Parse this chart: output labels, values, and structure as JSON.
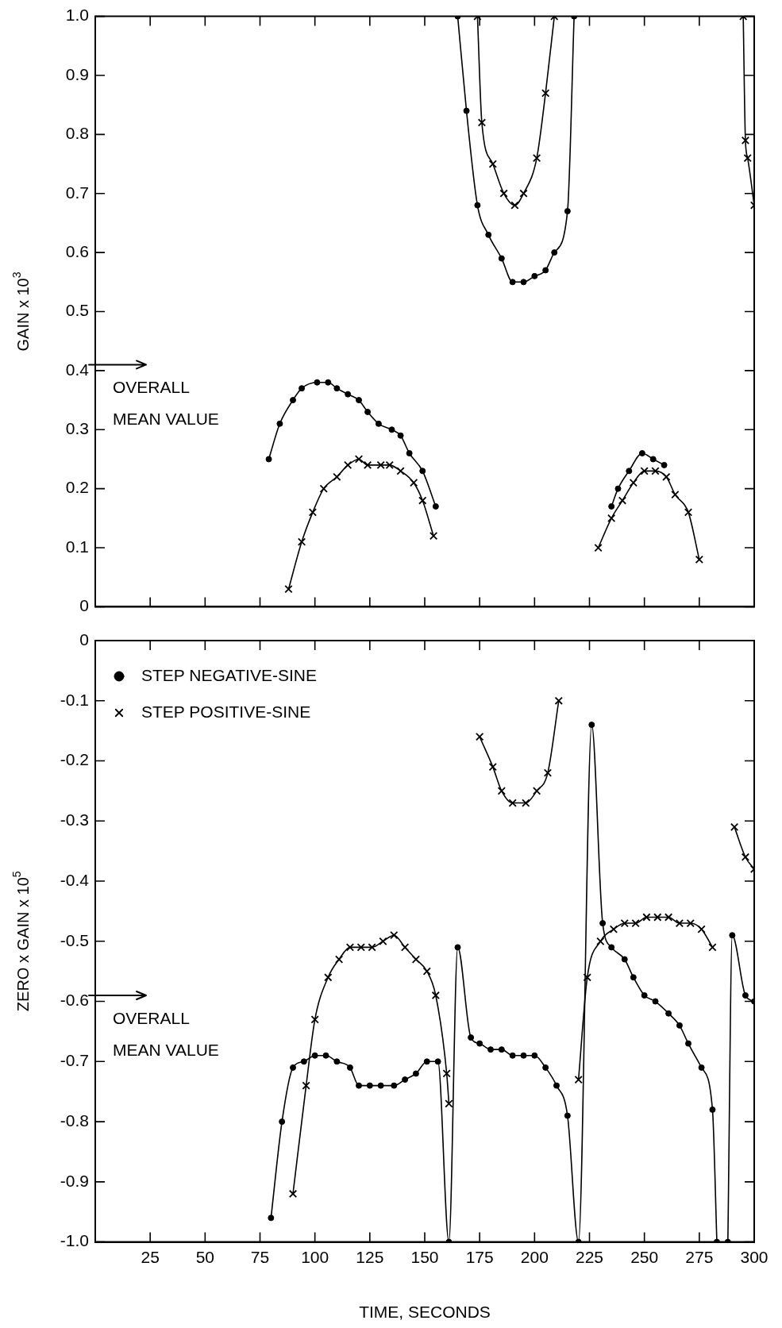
{
  "chart_data": [
    {
      "type": "line",
      "ylabel": "GAIN x 10$^{3}$",
      "xlim": [
        0,
        300
      ],
      "xticks": [
        25,
        50,
        75,
        100,
        125,
        150,
        175,
        200,
        225,
        250,
        275,
        300
      ],
      "ylim": [
        0,
        1
      ],
      "yticks": [
        0,
        0.1,
        0.2,
        0.3,
        0.4,
        0.5,
        0.6,
        0.7,
        0.8,
        0.9,
        {
          "value": 1,
          "label": "1.0"
        }
      ],
      "tick_labels": "y",
      "ref_lines": [
        {
          "axis": "y",
          "value": 0.41,
          "label": "OVERALL MEAN VALUE"
        }
      ],
      "series": [
        {
          "color": "#000000",
          "marker": "circle",
          "x": [
            79,
            84,
            90,
            94,
            101,
            106,
            110,
            115,
            120,
            124,
            129,
            135,
            139,
            143,
            149,
            155,
            160,
            165,
            169,
            174,
            179,
            185,
            190,
            195,
            200,
            205,
            209,
            215,
            218,
            225,
            235,
            238,
            243,
            249,
            254,
            259
          ],
          "values": [
            0.25,
            0.31,
            0.35,
            0.37,
            0.38,
            0.38,
            0.37,
            0.36,
            0.35,
            0.33,
            0.31,
            0.3,
            0.29,
            0.26,
            0.23,
            0.17,
            null,
            1.0,
            0.84,
            0.68,
            0.63,
            0.59,
            0.55,
            0.55,
            0.56,
            0.57,
            0.6,
            0.67,
            1.0,
            null,
            0.17,
            0.2,
            0.23,
            0.26,
            0.25,
            0.24
          ]
        },
        {
          "color": "#000000",
          "marker": "cross",
          "x": [
            88,
            94,
            99,
            104,
            110,
            115,
            120,
            124,
            130,
            134,
            139,
            145,
            149,
            154,
            160,
            174,
            176,
            181,
            186,
            191,
            195,
            201,
            205,
            209,
            220,
            229,
            235,
            240,
            245,
            250,
            255,
            260,
            264,
            270,
            275,
            285,
            295,
            296,
            297,
            300
          ],
          "values": [
            0.03,
            0.11,
            0.16,
            0.2,
            0.22,
            0.24,
            0.25,
            0.24,
            0.24,
            0.24,
            0.23,
            0.21,
            0.18,
            0.12,
            null,
            1.0,
            0.82,
            0.75,
            0.7,
            0.68,
            0.7,
            0.76,
            0.87,
            1.0,
            null,
            0.1,
            0.15,
            0.18,
            0.21,
            0.23,
            0.23,
            0.22,
            0.19,
            0.16,
            0.08,
            null,
            1.0,
            0.79,
            0.76,
            0.68
          ]
        }
      ]
    },
    {
      "type": "line",
      "xlabel": "TIME, SECONDS",
      "ylabel": "ZERO x GAIN x 10$^{5}$",
      "xlim": [
        0,
        300
      ],
      "xticks": [
        25,
        50,
        75,
        100,
        125,
        150,
        175,
        200,
        225,
        250,
        275,
        300
      ],
      "ylim": [
        -1,
        0
      ],
      "yticks": [
        {
          "value": -1,
          "label": "-1.0"
        },
        -0.9,
        -0.8,
        -0.7,
        -0.6,
        -0.5,
        -0.4,
        -0.3,
        -0.2,
        -0.1,
        0
      ],
      "legend": "top left",
      "ref_lines": [
        {
          "axis": "y",
          "value": -0.59,
          "label": "OVERALL MEAN VALUE"
        }
      ],
      "series": [
        {
          "name": "STEP NEGATIVE-SINE",
          "color": "#000000",
          "marker": "circle",
          "x": [
            80,
            85,
            90,
            95,
            100,
            105,
            110,
            116,
            120,
            125,
            130,
            136,
            141,
            146,
            151,
            156,
            161,
            165,
            171,
            175,
            180,
            185,
            190,
            195,
            200,
            205,
            210,
            215,
            220,
            226,
            231,
            235,
            241,
            245,
            250,
            255,
            261,
            266,
            270,
            276,
            281,
            283,
            285,
            288,
            290,
            296,
            300
          ],
          "values": [
            -0.96,
            -0.8,
            -0.71,
            -0.7,
            -0.69,
            -0.69,
            -0.7,
            -0.71,
            -0.74,
            -0.74,
            -0.74,
            -0.74,
            -0.73,
            -0.72,
            -0.7,
            -0.7,
            -1.0,
            -0.51,
            -0.66,
            -0.67,
            -0.68,
            -0.68,
            -0.69,
            -0.69,
            -0.69,
            -0.71,
            -0.74,
            -0.79,
            -1.0,
            -0.14,
            -0.47,
            -0.51,
            -0.53,
            -0.56,
            -0.59,
            -0.6,
            -0.62,
            -0.64,
            -0.67,
            -0.71,
            -0.78,
            -1.0,
            null,
            -1.0,
            -0.49,
            -0.59,
            -0.6
          ]
        },
        {
          "name": "STEP POSITIVE-SINE",
          "color": "#000000",
          "marker": "cross",
          "x": [
            90,
            96,
            100,
            106,
            111,
            116,
            121,
            126,
            131,
            136,
            141,
            146,
            151,
            155,
            160,
            161,
            168,
            175,
            181,
            185,
            190,
            196,
            201,
            206,
            211,
            215,
            220,
            224,
            230,
            236,
            241,
            246,
            251,
            256,
            261,
            266,
            271,
            276,
            281,
            285,
            291,
            296,
            300
          ],
          "values": [
            -0.92,
            -0.74,
            -0.63,
            -0.56,
            -0.53,
            -0.51,
            -0.51,
            -0.51,
            -0.5,
            -0.49,
            -0.51,
            -0.53,
            -0.55,
            -0.59,
            -0.72,
            -0.77,
            null,
            -0.16,
            -0.21,
            -0.25,
            -0.27,
            -0.27,
            -0.25,
            -0.22,
            -0.1,
            null,
            -0.73,
            -0.56,
            -0.5,
            -0.48,
            -0.47,
            -0.47,
            -0.46,
            -0.46,
            -0.46,
            -0.47,
            -0.47,
            -0.48,
            -0.51,
            null,
            -0.31,
            -0.36,
            -0.38
          ]
        }
      ]
    }
  ]
}
